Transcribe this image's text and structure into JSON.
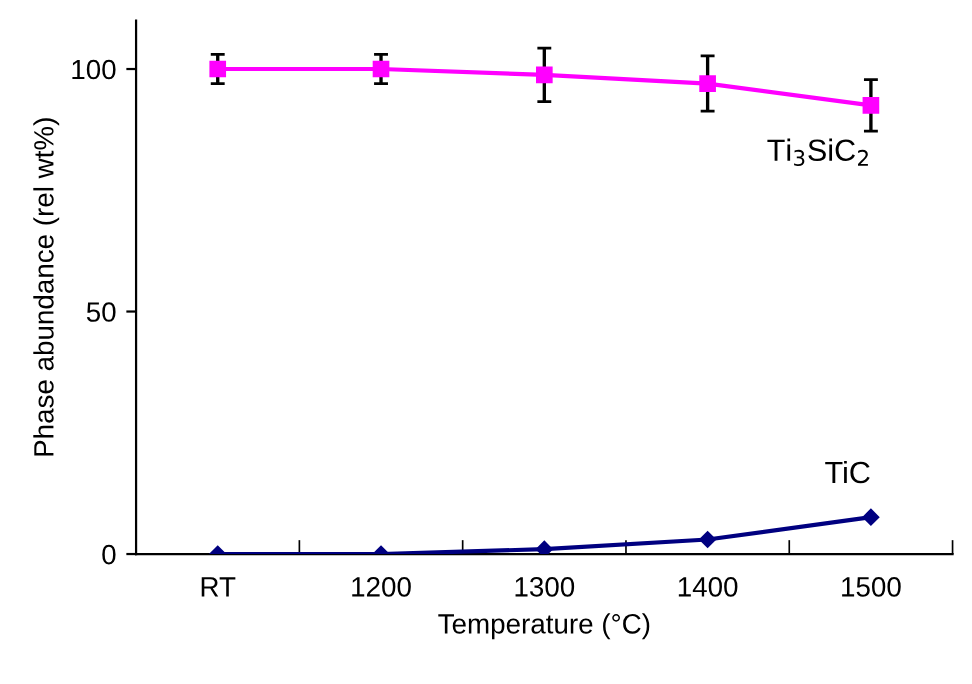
{
  "chart_data": {
    "type": "line",
    "xlabel": "Temperature (°C)",
    "ylabel": "Phase abundance (rel wt%)",
    "categories": [
      "RT",
      "1200",
      "1300",
      "1400",
      "1500"
    ],
    "series": [
      {
        "name": "Ti$_{3}$SiC$_{2}$",
        "color": "#ff00ff",
        "marker": "square",
        "values": [
          100,
          100,
          98.8,
          97,
          92.5
        ],
        "errors": [
          3,
          3,
          5.5,
          5.7,
          5.3
        ]
      },
      {
        "name": "TiC",
        "color": "#000080",
        "marker": "diamond",
        "values": [
          0,
          0,
          1,
          3,
          7.6
        ]
      }
    ],
    "ylim": [
      0,
      110
    ],
    "yticks": [
      0,
      50,
      100
    ],
    "grid": false,
    "legend": false
  }
}
